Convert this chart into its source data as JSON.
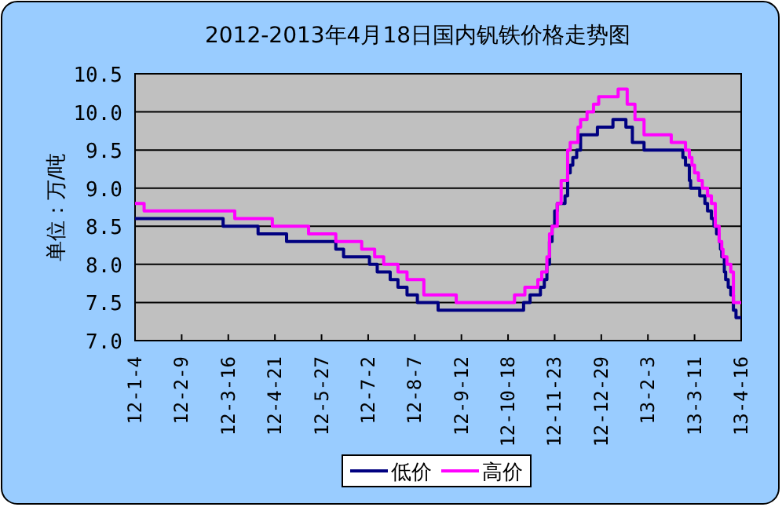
{
  "chart_data": {
    "type": "step",
    "title": "2012-2013年4月18日国内钒铁价格走势图",
    "ylabel": "单位：万/吨",
    "xlim": [
      "2012-01-04",
      "2013-04-16"
    ],
    "xticks": [
      {
        "value": "2012-01-04",
        "label": "12-1-4"
      },
      {
        "value": "2012-02-09",
        "label": "12-2-9"
      },
      {
        "value": "2012-03-16",
        "label": "12-3-16"
      },
      {
        "value": "2012-04-21",
        "label": "12-4-21"
      },
      {
        "value": "2012-05-27",
        "label": "12-5-27"
      },
      {
        "value": "2012-07-02",
        "label": "12-7-2"
      },
      {
        "value": "2012-08-07",
        "label": "12-8-7"
      },
      {
        "value": "2012-09-12",
        "label": "12-9-12"
      },
      {
        "value": "2012-10-18",
        "label": "12-10-18"
      },
      {
        "value": "2012-11-23",
        "label": "12-11-23"
      },
      {
        "value": "2012-12-29",
        "label": "12-12-29"
      },
      {
        "value": "2013-02-03",
        "label": "13-2-3"
      },
      {
        "value": "2013-03-11",
        "label": "13-3-11"
      },
      {
        "value": "2013-04-16",
        "label": "13-4-16"
      }
    ],
    "ylim": [
      7,
      10.5
    ],
    "yticks": [
      {
        "value": 7,
        "label": "7.0"
      },
      7.5,
      {
        "value": 8,
        "label": "8.0"
      },
      8.5,
      {
        "value": 9,
        "label": "9.0"
      },
      9.5,
      {
        "value": 10,
        "label": "10.0"
      },
      10.5
    ],
    "grid": "y",
    "legend": "bottom",
    "series": [
      {
        "name": "低价",
        "color": "#000080",
        "x": [
          "2012-01-04",
          "2012-03-12",
          "2012-04-08",
          "2012-04-30",
          "2012-06-07",
          "2012-06-13",
          "2012-07-03",
          "2012-07-09",
          "2012-07-19",
          "2012-07-25",
          "2012-08-01",
          "2012-08-09",
          "2012-08-25",
          "2012-10-30",
          "2012-11-04",
          "2012-11-12",
          "2012-11-15",
          "2012-11-17",
          "2012-11-19",
          "2012-11-21",
          "2012-11-23",
          "2012-11-25",
          "2012-12-01",
          "2012-12-03",
          "2012-12-05",
          "2012-12-07",
          "2012-12-10",
          "2012-12-13",
          "2012-12-26",
          "2013-01-07",
          "2013-01-17",
          "2013-01-22",
          "2013-01-31",
          "2013-03-02",
          "2013-03-04",
          "2013-03-07",
          "2013-03-08",
          "2013-03-15",
          "2013-03-19",
          "2013-03-21",
          "2013-03-24",
          "2013-03-26",
          "2013-03-28",
          "2013-03-30",
          "2013-03-31",
          "2013-04-01",
          "2013-04-03",
          "2013-04-04",
          "2013-04-06",
          "2013-04-08",
          "2013-04-10",
          "2013-04-12",
          "2013-04-16"
        ],
        "values": [
          8.6,
          8.5,
          8.4,
          8.3,
          8.2,
          8.1,
          8.0,
          7.9,
          7.8,
          7.7,
          7.6,
          7.5,
          7.4,
          7.5,
          7.6,
          7.7,
          7.8,
          8.0,
          8.3,
          8.5,
          8.7,
          8.8,
          8.9,
          9.2,
          9.3,
          9.4,
          9.5,
          9.7,
          9.8,
          9.9,
          9.8,
          9.6,
          9.5,
          9.4,
          9.3,
          9.1,
          9.0,
          8.9,
          8.8,
          8.7,
          8.6,
          8.5,
          8.4,
          8.3,
          8.2,
          8.1,
          7.9,
          7.8,
          7.7,
          7.6,
          7.4,
          7.3,
          7.3
        ]
      },
      {
        "name": "高价",
        "color": "#ff00ff",
        "x": [
          "2012-01-04",
          "2012-01-11",
          "2012-03-21",
          "2012-04-19",
          "2012-05-17",
          "2012-06-07",
          "2012-06-27",
          "2012-07-07",
          "2012-07-14",
          "2012-07-25",
          "2012-08-01",
          "2012-08-14",
          "2012-09-08",
          "2012-10-23",
          "2012-10-31",
          "2012-11-10",
          "2012-11-13",
          "2012-11-17",
          "2012-11-19",
          "2012-11-21",
          "2012-11-25",
          "2012-11-28",
          "2012-12-03",
          "2012-12-05",
          "2012-12-11",
          "2012-12-13",
          "2012-12-18",
          "2012-12-23",
          "2012-12-27",
          "2013-01-11",
          "2013-01-18",
          "2013-01-24",
          "2013-01-31",
          "2013-02-21",
          "2013-03-04",
          "2013-03-07",
          "2013-03-09",
          "2013-03-11",
          "2013-03-14",
          "2013-03-17",
          "2013-03-21",
          "2013-03-24",
          "2013-03-27",
          "2013-03-30",
          "2013-04-01",
          "2013-04-02",
          "2013-04-05",
          "2013-04-08",
          "2013-04-10",
          "2013-04-16"
        ],
        "values": [
          8.8,
          8.7,
          8.6,
          8.5,
          8.4,
          8.3,
          8.2,
          8.1,
          8.0,
          7.9,
          7.8,
          7.6,
          7.5,
          7.6,
          7.7,
          7.8,
          7.9,
          8.1,
          8.4,
          8.5,
          8.8,
          9.1,
          9.5,
          9.6,
          9.8,
          9.9,
          10.0,
          10.1,
          10.2,
          10.3,
          10.1,
          9.9,
          9.7,
          9.6,
          9.5,
          9.4,
          9.3,
          9.2,
          9.1,
          9.0,
          8.9,
          8.8,
          8.5,
          8.3,
          8.2,
          8.1,
          8.0,
          7.9,
          7.5,
          7.5
        ]
      }
    ]
  }
}
